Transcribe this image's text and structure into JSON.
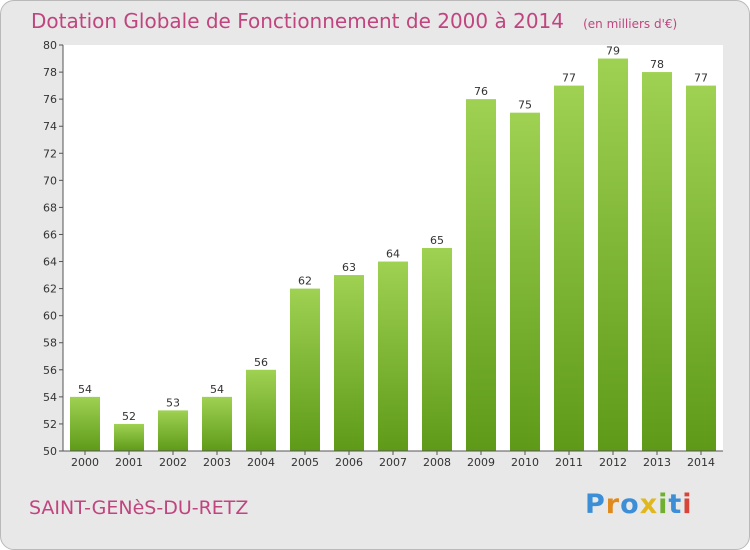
{
  "chart_data": {
    "type": "bar",
    "title": "Dotation Globale de Fonctionnement de 2000 à 2014",
    "unit": "(en milliers d'€)",
    "categories": [
      "2000",
      "2001",
      "2002",
      "2003",
      "2004",
      "2005",
      "2006",
      "2007",
      "2008",
      "2009",
      "2010",
      "2011",
      "2012",
      "2013",
      "2014"
    ],
    "values": [
      54,
      52,
      53,
      54,
      56,
      62,
      63,
      64,
      65,
      76,
      75,
      77,
      79,
      78,
      77
    ],
    "ylim": [
      50,
      80
    ],
    "yticks": [
      50,
      52,
      54,
      56,
      58,
      60,
      62,
      64,
      66,
      68,
      70,
      72,
      74,
      76,
      78,
      80
    ],
    "grid": false,
    "bar_color": "#7cba2e",
    "xlabel": "",
    "ylabel": ""
  },
  "commune": "SAINT-GENèS-DU-RETZ",
  "brand": {
    "letters": [
      "P",
      "r",
      "o",
      "x",
      "i",
      "t",
      "i"
    ],
    "colors": [
      "#3c8fd6",
      "#e08a1e",
      "#3c8fd6",
      "#e0b81e",
      "#6fb02e",
      "#3c8fd6",
      "#d8443a"
    ]
  },
  "colors": {
    "accent": "#c0457f",
    "background": "#e8e8e8",
    "plot_background": "#ffffff"
  }
}
